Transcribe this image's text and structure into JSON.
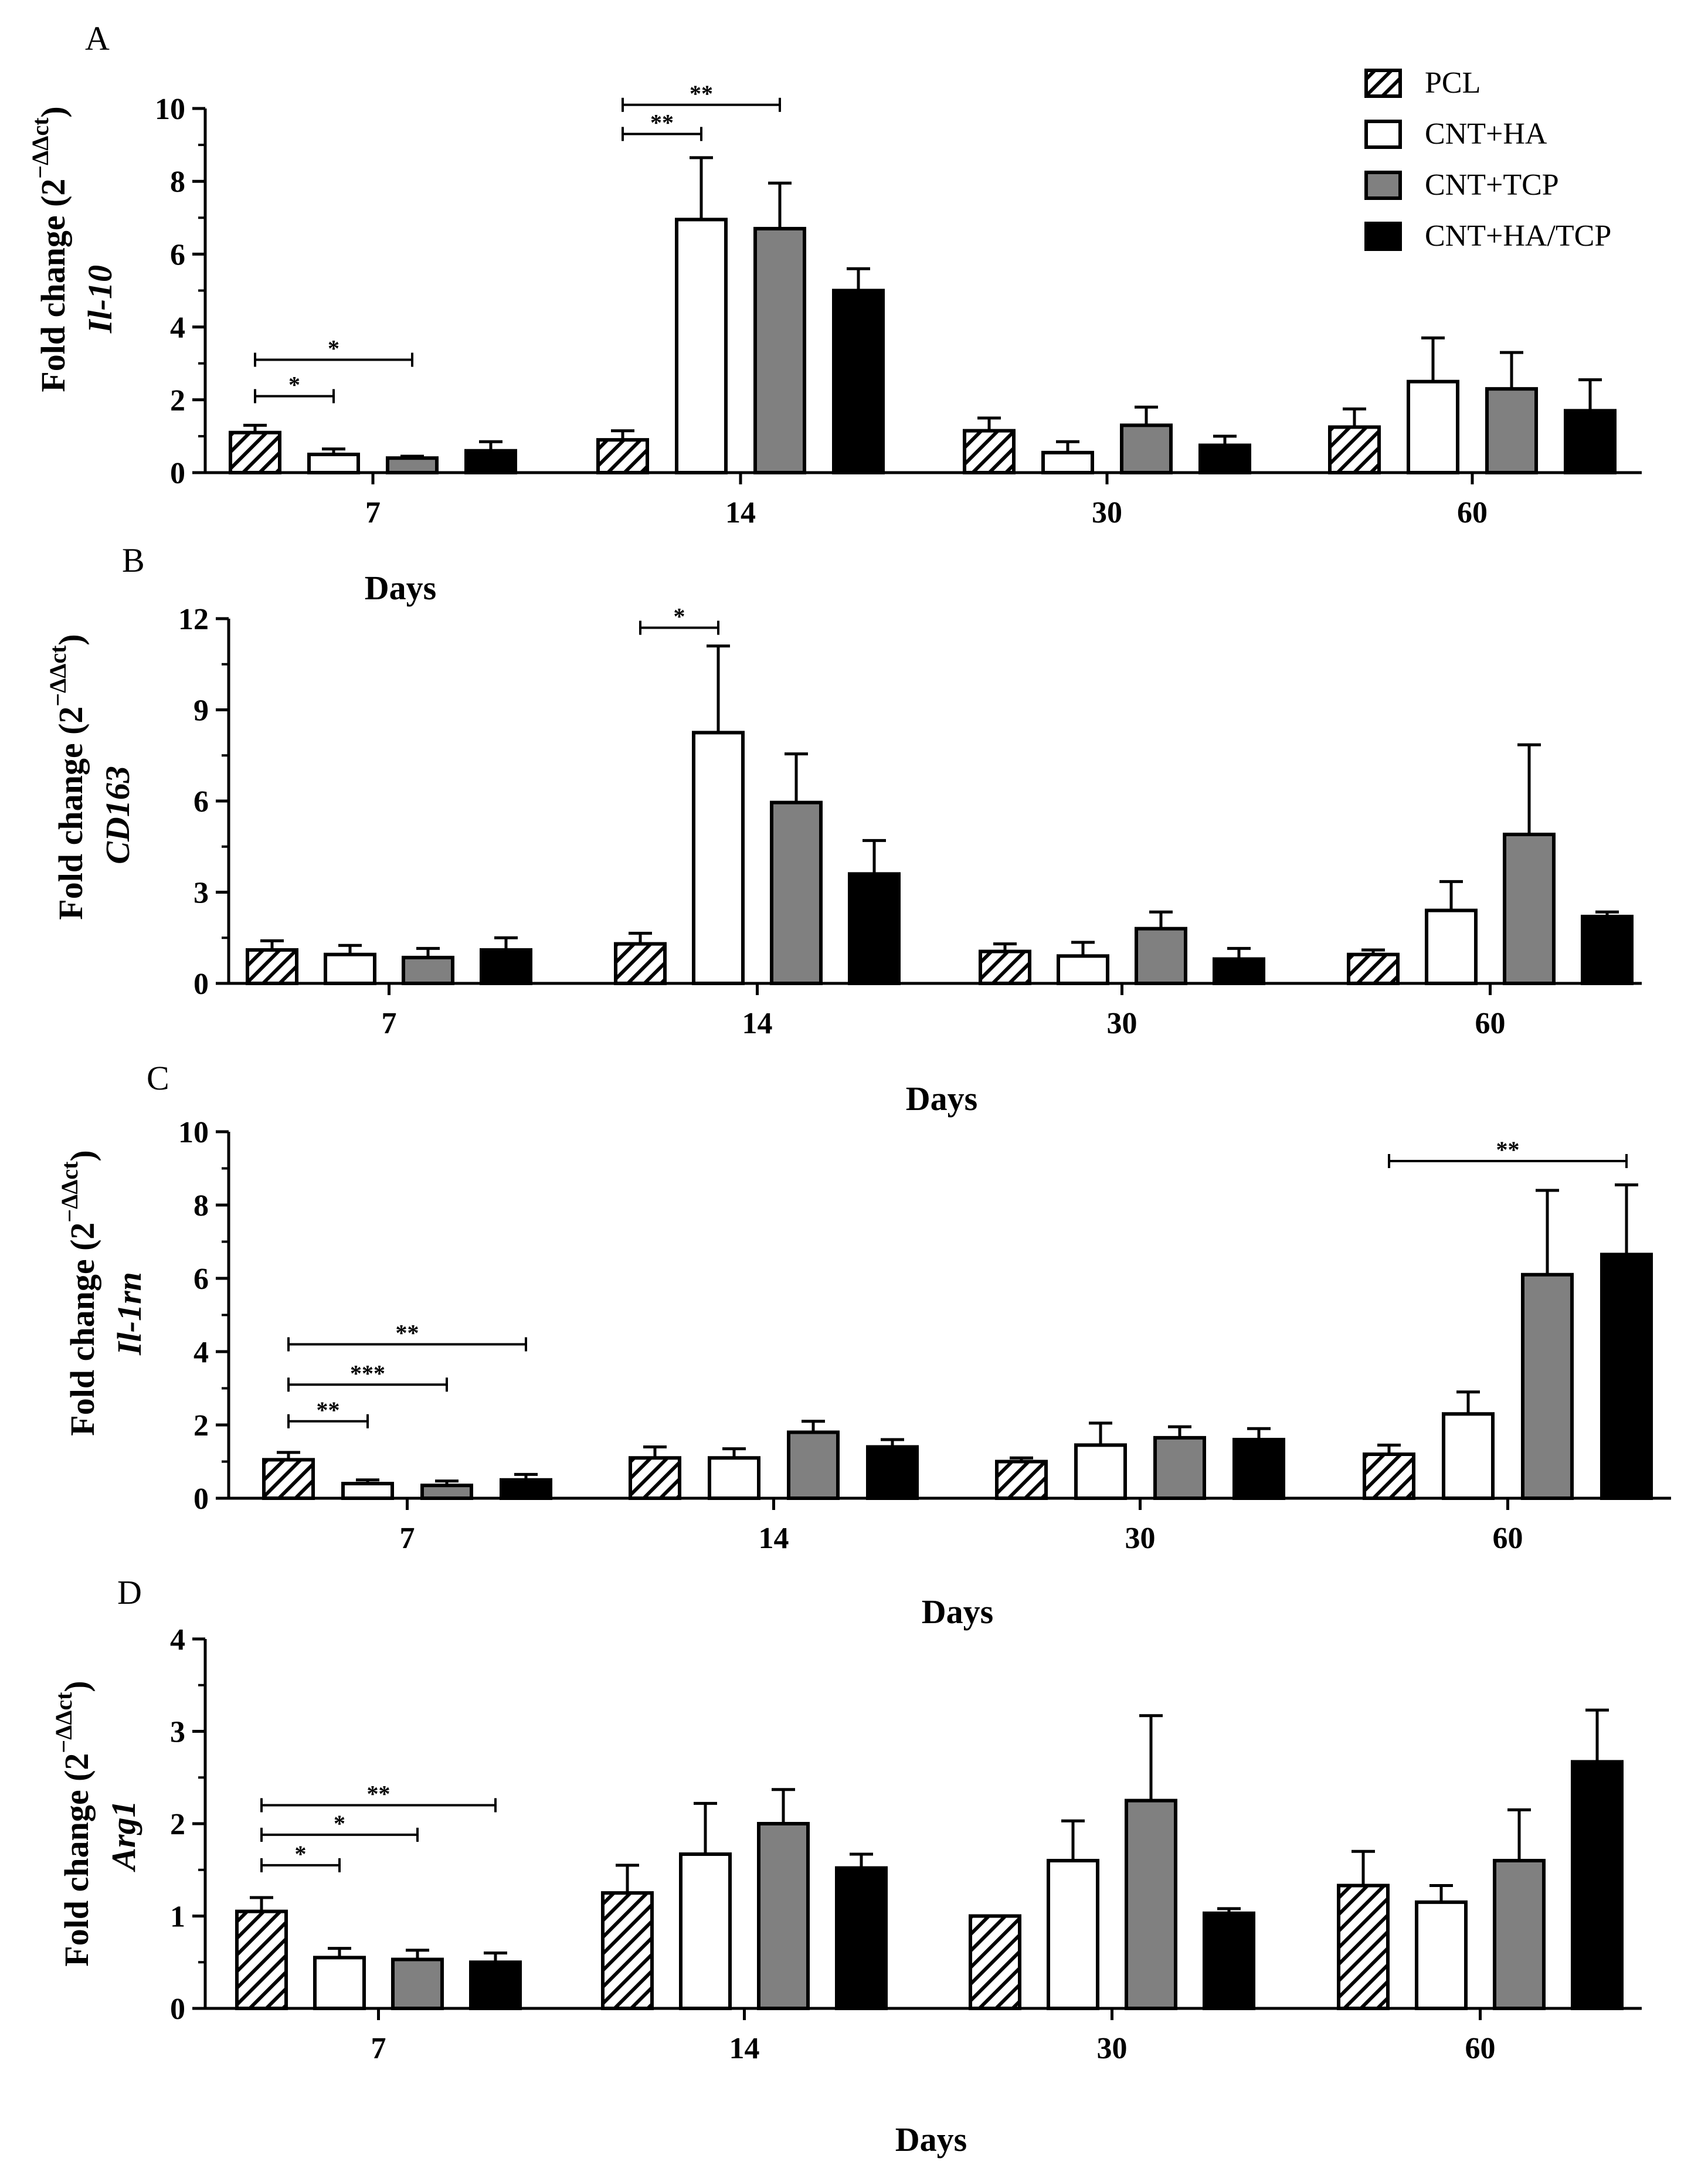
{
  "chart_data": [
    {
      "type": "bar",
      "panel_letter": "A",
      "categories": [
        "7",
        "14",
        "30",
        "60"
      ],
      "xlabel": "Days",
      "ylabel": {
        "prefix": "Fold change (2",
        "exponent": "−ΔΔct",
        "suffix": ")",
        "gene": "Il-10"
      },
      "ylim": [
        0,
        10
      ],
      "yticks": [
        "0",
        "2",
        "4",
        "6",
        "8",
        "10"
      ],
      "series": [
        {
          "name": "PCL",
          "values": [
            1.1,
            0.9,
            1.15,
            1.25
          ],
          "errors": [
            0.2,
            0.25,
            0.35,
            0.5
          ]
        },
        {
          "name": "CNT+HA",
          "values": [
            0.5,
            6.95,
            0.55,
            2.5
          ],
          "errors": [
            0.15,
            1.7,
            0.3,
            1.2
          ]
        },
        {
          "name": "CNT+TCP",
          "values": [
            0.4,
            6.7,
            1.3,
            2.3
          ],
          "errors": [
            0.05,
            1.25,
            0.5,
            1.0
          ]
        },
        {
          "name": "CNT+HA/TCP",
          "values": [
            0.6,
            5.0,
            0.75,
            1.7
          ],
          "errors": [
            0.25,
            0.6,
            0.25,
            0.85
          ]
        }
      ],
      "significance": [
        {
          "group": 0,
          "from": 0,
          "to": 1,
          "label": "*",
          "y": 2.1
        },
        {
          "group": 0,
          "from": 0,
          "to": 2,
          "label": "*",
          "y": 3.1
        },
        {
          "group": 1,
          "from": 0,
          "to": 1,
          "label": "**",
          "y": 9.3
        },
        {
          "group": 1,
          "from": 0,
          "to": 2,
          "label": "**",
          "y": 10.1
        }
      ]
    },
    {
      "type": "bar",
      "panel_letter": "B",
      "categories": [
        "7",
        "14",
        "30",
        "60"
      ],
      "xlabel": "Days",
      "ylabel": {
        "prefix": "Fold change (2",
        "exponent": "−ΔΔct",
        "suffix": ")",
        "gene": "CD163"
      },
      "ylim": [
        0,
        12
      ],
      "yticks": [
        "0",
        "3",
        "6",
        "9",
        "12"
      ],
      "series": [
        {
          "name": "PCL",
          "values": [
            1.1,
            1.3,
            1.05,
            0.95
          ],
          "errors": [
            0.3,
            0.35,
            0.25,
            0.15
          ]
        },
        {
          "name": "CNT+HA",
          "values": [
            0.95,
            8.25,
            0.9,
            2.4
          ],
          "errors": [
            0.3,
            2.85,
            0.45,
            0.95
          ]
        },
        {
          "name": "CNT+TCP",
          "values": [
            0.85,
            5.95,
            1.8,
            4.9
          ],
          "errors": [
            0.3,
            1.6,
            0.55,
            2.95
          ]
        },
        {
          "name": "CNT+HA/TCP",
          "values": [
            1.1,
            3.6,
            0.8,
            2.2
          ],
          "errors": [
            0.4,
            1.1,
            0.35,
            0.15
          ]
        }
      ],
      "significance": [
        {
          "group": 1,
          "from": 0,
          "to": 1,
          "label": "*",
          "y": 11.7
        }
      ]
    },
    {
      "type": "bar",
      "panel_letter": "C",
      "categories": [
        "7",
        "14",
        "30",
        "60"
      ],
      "xlabel": "Days",
      "ylabel": {
        "prefix": "Fold change (2",
        "exponent": "−ΔΔct",
        "suffix": ")",
        "gene": "Il-1rn"
      },
      "ylim": [
        0,
        10
      ],
      "yticks": [
        "0",
        "2",
        "4",
        "6",
        "8",
        "10"
      ],
      "series": [
        {
          "name": "PCL",
          "values": [
            1.05,
            1.1,
            1.0,
            1.2
          ],
          "errors": [
            0.2,
            0.3,
            0.1,
            0.25
          ]
        },
        {
          "name": "CNT+HA",
          "values": [
            0.4,
            1.1,
            1.45,
            2.3
          ],
          "errors": [
            0.1,
            0.25,
            0.6,
            0.6
          ]
        },
        {
          "name": "CNT+TCP",
          "values": [
            0.35,
            1.8,
            1.65,
            6.1
          ],
          "errors": [
            0.12,
            0.3,
            0.3,
            2.3
          ]
        },
        {
          "name": "CNT+HA/TCP",
          "values": [
            0.5,
            1.4,
            1.6,
            6.65
          ],
          "errors": [
            0.15,
            0.2,
            0.3,
            1.9
          ]
        }
      ],
      "significance": [
        {
          "group": 0,
          "from": 0,
          "to": 1,
          "label": "**",
          "y": 2.1
        },
        {
          "group": 0,
          "from": 0,
          "to": 2,
          "label": "***",
          "y": 3.1
        },
        {
          "group": 0,
          "from": 0,
          "to": 3,
          "label": "**",
          "y": 4.2
        },
        {
          "group": 3,
          "from": 0,
          "to": 3,
          "label": "**",
          "y": 9.2
        }
      ]
    },
    {
      "type": "bar",
      "panel_letter": "D",
      "categories": [
        "7",
        "14",
        "30",
        "60"
      ],
      "xlabel": "Days",
      "ylabel": {
        "prefix": "Fold change (2",
        "exponent": "−ΔΔct",
        "suffix": ")",
        "gene": "Arg1"
      },
      "ylim": [
        0,
        4
      ],
      "yticks": [
        "0",
        "1",
        "2",
        "3",
        "4"
      ],
      "series": [
        {
          "name": "PCL",
          "values": [
            1.05,
            1.25,
            1.0,
            1.33
          ],
          "errors": [
            0.15,
            0.3,
            0.0,
            0.37
          ]
        },
        {
          "name": "CNT+HA",
          "values": [
            0.55,
            1.67,
            1.6,
            1.15
          ],
          "errors": [
            0.1,
            0.55,
            0.43,
            0.18
          ]
        },
        {
          "name": "CNT+TCP",
          "values": [
            0.53,
            2.0,
            2.25,
            1.6
          ],
          "errors": [
            0.1,
            0.37,
            0.92,
            0.55
          ]
        },
        {
          "name": "CNT+HA/TCP",
          "values": [
            0.5,
            1.52,
            1.03,
            2.67
          ],
          "errors": [
            0.1,
            0.15,
            0.05,
            0.56
          ]
        }
      ],
      "significance": [
        {
          "group": 0,
          "from": 0,
          "to": 1,
          "label": "*",
          "y": 1.55
        },
        {
          "group": 0,
          "from": 0,
          "to": 2,
          "label": "*",
          "y": 1.88
        },
        {
          "group": 0,
          "from": 0,
          "to": 3,
          "label": "**",
          "y": 2.2
        }
      ]
    }
  ],
  "legend": [
    {
      "name": "PCL",
      "style": "hatch"
    },
    {
      "name": "CNT+HA",
      "style": "white"
    },
    {
      "name": "CNT+TCP",
      "style": "gray"
    },
    {
      "name": "CNT+HA/TCP",
      "style": "black"
    }
  ],
  "colors": {
    "PCL": "hatched black on white",
    "CNT+HA": "#ffffff",
    "CNT+TCP": "#808080",
    "CNT+HA/TCP": "#000000"
  },
  "legend_position": "top-right"
}
